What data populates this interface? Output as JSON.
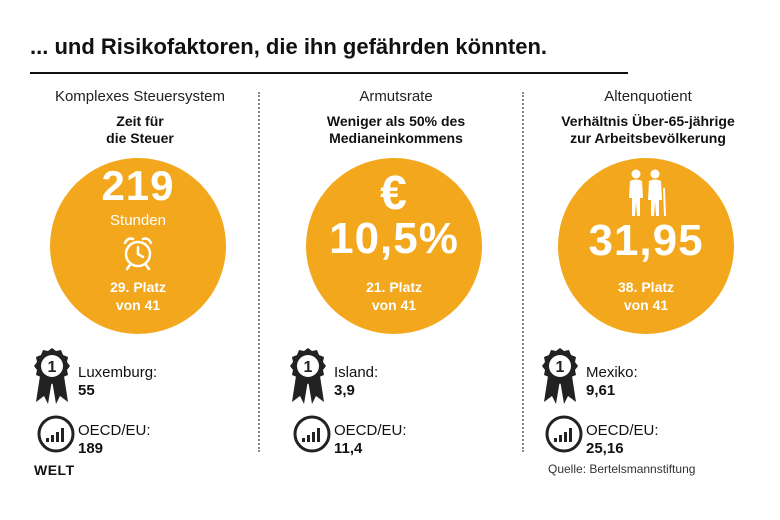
{
  "title": "... und Risikofaktoren, die ihn gefährden könnten.",
  "columns": [
    {
      "category": "Komplexes Steuersystem",
      "subtitle_line1": "Zeit für",
      "subtitle_line2": "die Steuer",
      "value": "219",
      "unit": "Stunden",
      "icon": "alarm-clock-icon",
      "rank_line1": "29. Platz",
      "rank_line2": "von 41",
      "best_label": "Luxemburg:",
      "best_value": "55",
      "oecd_label": "OECD/EU:",
      "oecd_value": "189"
    },
    {
      "category": "Armutsrate",
      "subtitle_line1": "Weniger als 50% des",
      "subtitle_line2": "Medianeinkommens",
      "symbol": "€",
      "value": "10,5%",
      "icon": "euro-icon",
      "rank_line1": "21. Platz",
      "rank_line2": "von 41",
      "best_label": "Island:",
      "best_value": "3,9",
      "oecd_label": "OECD/EU:",
      "oecd_value": "11,4"
    },
    {
      "category": "Altenquotient",
      "subtitle_line1": "Verhältnis Über-65-jährige",
      "subtitle_line2": "zur Arbeitsbevölkerung",
      "value": "31,95",
      "icon": "elderly-couple-icon",
      "rank_line1": "38. Platz",
      "rank_line2": "von 41",
      "best_label": "Mexiko:",
      "best_value": "9,61",
      "oecd_label": "OECD/EU:",
      "oecd_value": "25,16"
    }
  ],
  "logo": "WELT",
  "source": "Quelle: Bertelsmannstiftung",
  "colors": {
    "accent": "#f3a71c",
    "dark": "#111111"
  }
}
